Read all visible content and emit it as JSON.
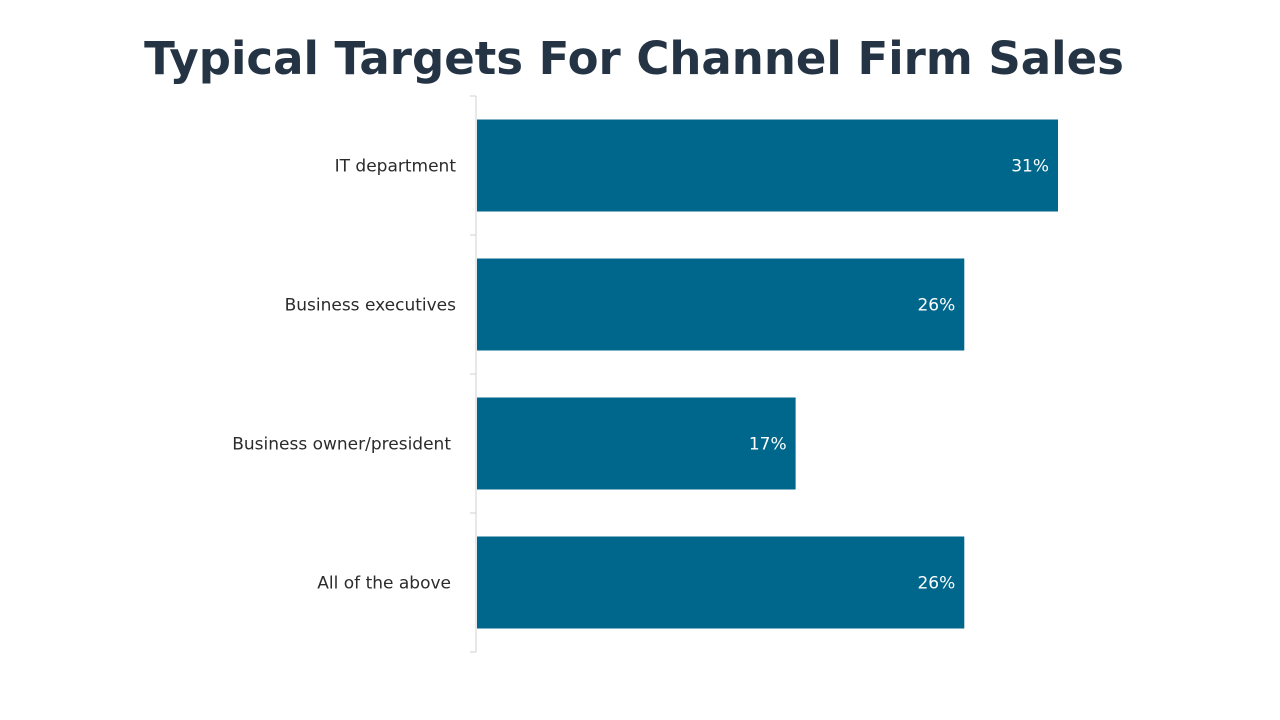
{
  "title": "Typical Targets For Channel Firm Sales",
  "colors": {
    "bar": "#00678c",
    "title": "#243444",
    "axis": "#d0d0d0"
  },
  "chart_data": {
    "type": "bar",
    "orientation": "horizontal",
    "title": "Typical Targets For Channel Firm Sales",
    "categories": [
      "IT department",
      "Business executives",
      "Business owner/president",
      "All of the above"
    ],
    "values": [
      31,
      26,
      17,
      26
    ],
    "value_labels": [
      "31%",
      "26%",
      "17%",
      "26%"
    ],
    "unit": "%",
    "xlim": [
      0,
      31
    ],
    "grid": false,
    "legend": "none"
  }
}
